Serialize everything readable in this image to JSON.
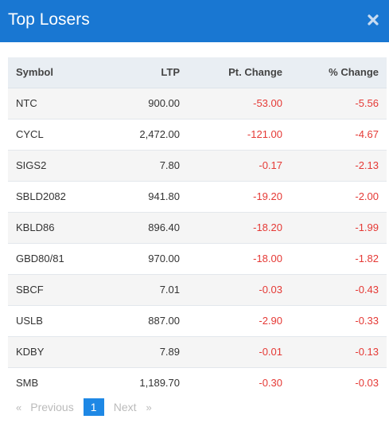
{
  "modal": {
    "title": "Top Losers"
  },
  "table": {
    "headers": {
      "symbol": "Symbol",
      "ltp": "LTP",
      "pt_change": "Pt. Change",
      "pct_change": "% Change"
    },
    "rows": [
      {
        "symbol": "NTC",
        "ltp": "900.00",
        "pt_change": "-53.00",
        "pct_change": "-5.56"
      },
      {
        "symbol": "CYCL",
        "ltp": "2,472.00",
        "pt_change": "-121.00",
        "pct_change": "-4.67"
      },
      {
        "symbol": "SIGS2",
        "ltp": "7.80",
        "pt_change": "-0.17",
        "pct_change": "-2.13"
      },
      {
        "symbol": "SBLD2082",
        "ltp": "941.80",
        "pt_change": "-19.20",
        "pct_change": "-2.00"
      },
      {
        "symbol": "KBLD86",
        "ltp": "896.40",
        "pt_change": "-18.20",
        "pct_change": "-1.99"
      },
      {
        "symbol": "GBD80/81",
        "ltp": "970.00",
        "pt_change": "-18.00",
        "pct_change": "-1.82"
      },
      {
        "symbol": "SBCF",
        "ltp": "7.01",
        "pt_change": "-0.03",
        "pct_change": "-0.43"
      },
      {
        "symbol": "USLB",
        "ltp": "887.00",
        "pt_change": "-2.90",
        "pct_change": "-0.33"
      },
      {
        "symbol": "KDBY",
        "ltp": "7.89",
        "pt_change": "-0.01",
        "pct_change": "-0.13"
      },
      {
        "symbol": "SMB",
        "ltp": "1,189.70",
        "pt_change": "-0.30",
        "pct_change": "-0.03"
      }
    ]
  },
  "pagination": {
    "prev_arrow": "«",
    "prev_label": "Previous",
    "current_page": "1",
    "next_label": "Next",
    "next_arrow": "»"
  },
  "colors": {
    "header_blue": "#1977d2",
    "negative_red": "#e53935",
    "active_page_blue": "#1e88e5"
  },
  "icons": {
    "close": "close-icon"
  }
}
